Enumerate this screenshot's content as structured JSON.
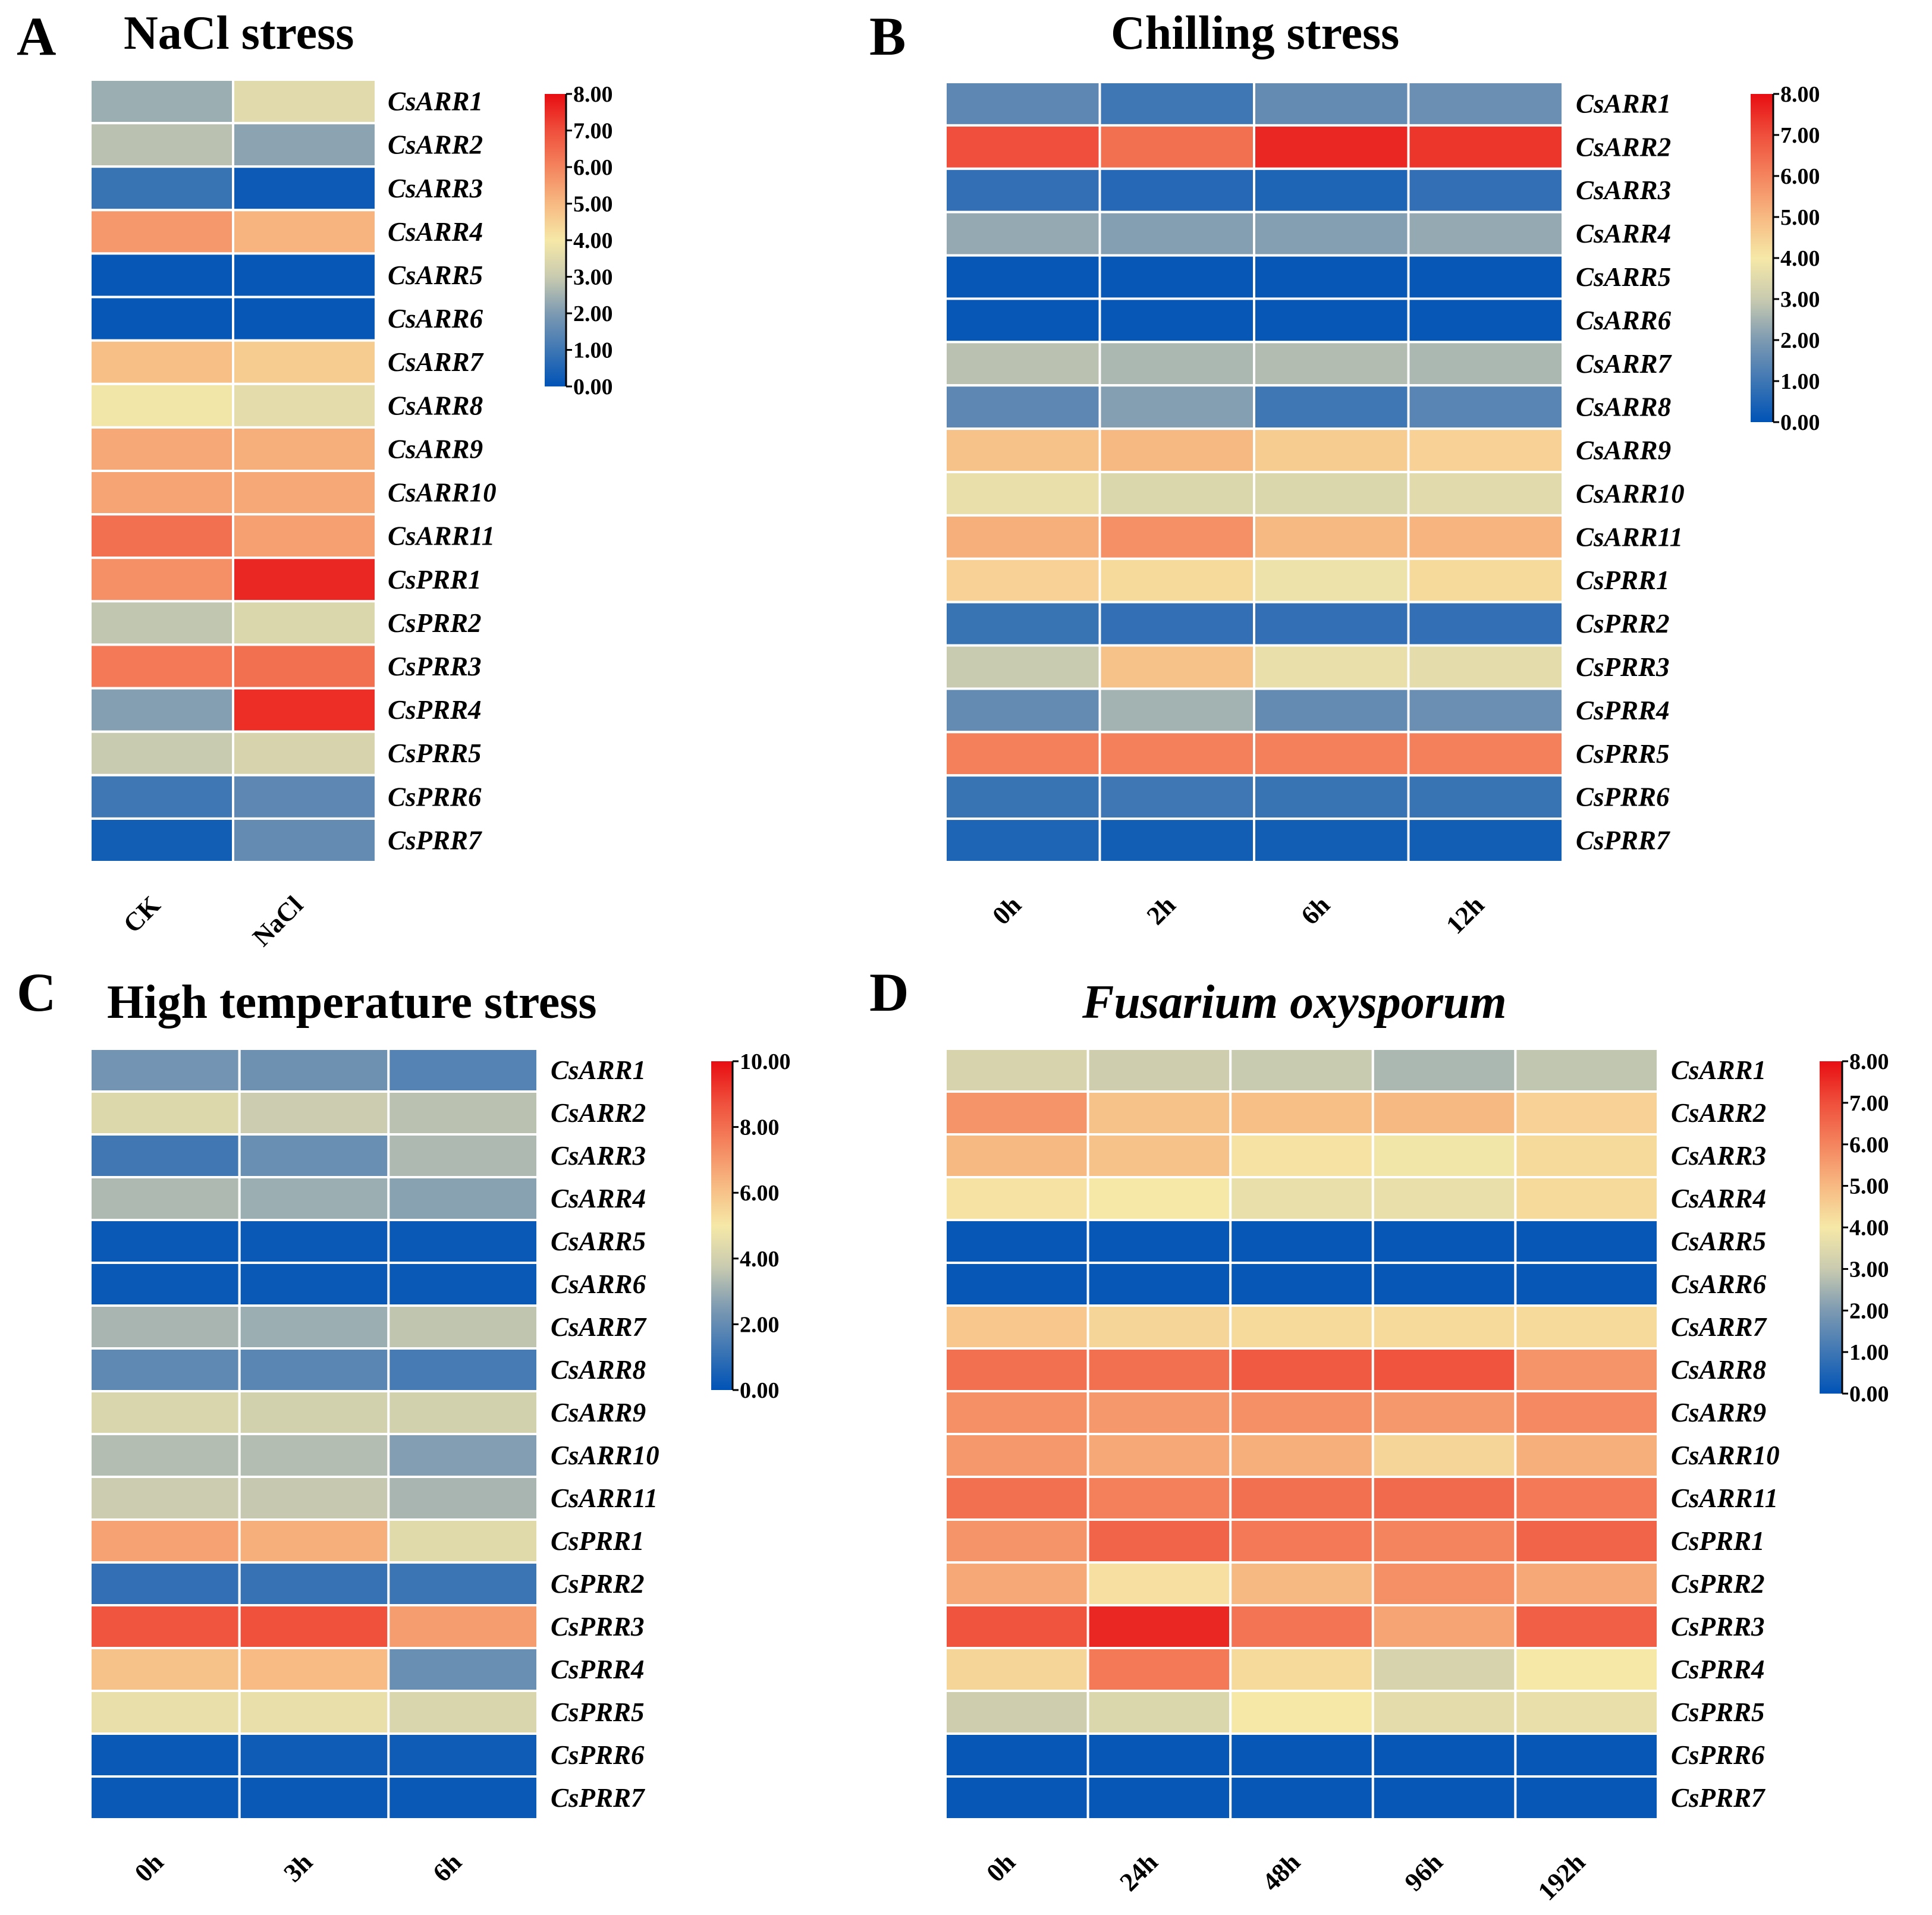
{
  "figure": {
    "description_free": true
  },
  "chart_data": [
    {
      "panel": "A",
      "title": "NaCl stress",
      "title_italic": false,
      "type": "heatmap",
      "columns": [
        "CK",
        "NaCl"
      ],
      "rows": [
        "CsARR1",
        "CsARR2",
        "CsARR3",
        "CsARR4",
        "CsARR5",
        "CsARR6",
        "CsARR7",
        "CsARR8",
        "CsARR9",
        "CsARR10",
        "CsARR11",
        "CsPRR1",
        "CsPRR2",
        "CsPRR3",
        "CsPRR4",
        "CsPRR5",
        "CsPRR6",
        "CsPRR7"
      ],
      "values": [
        [
          2.4,
          3.5
        ],
        [
          2.8,
          2.2
        ],
        [
          0.9,
          0.2
        ],
        [
          5.6,
          5.1
        ],
        [
          0.1,
          0.1
        ],
        [
          0.1,
          0.1
        ],
        [
          4.9,
          4.6
        ],
        [
          3.9,
          3.6
        ],
        [
          5.3,
          5.2
        ],
        [
          5.4,
          5.3
        ],
        [
          6.4,
          5.5
        ],
        [
          5.8,
          7.6
        ],
        [
          2.9,
          3.4
        ],
        [
          6.2,
          6.4
        ],
        [
          2.1,
          7.5
        ],
        [
          3.0,
          3.3
        ],
        [
          1.0,
          1.5
        ],
        [
          0.3,
          1.6
        ]
      ],
      "colorbar": {
        "min": 0,
        "max": 8,
        "ticks": [
          "0.00",
          "1.00",
          "2.00",
          "3.00",
          "4.00",
          "5.00",
          "6.00",
          "7.00",
          "8.00"
        ]
      }
    },
    {
      "panel": "B",
      "title": "Chilling stress",
      "title_italic": false,
      "type": "heatmap",
      "columns": [
        "0h",
        "2h",
        "6h",
        "12h"
      ],
      "rows": [
        "CsARR1",
        "CsARR2",
        "CsARR3",
        "CsARR4",
        "CsARR5",
        "CsARR6",
        "CsARR7",
        "CsARR8",
        "CsARR9",
        "CsARR10",
        "CsARR11",
        "CsPRR1",
        "CsPRR2",
        "CsPRR3",
        "CsPRR4",
        "CsPRR5",
        "CsPRR6",
        "CsPRR7"
      ],
      "values": [
        [
          1.5,
          1.0,
          1.6,
          1.7
        ],
        [
          7.0,
          6.4,
          7.6,
          7.4
        ],
        [
          0.8,
          0.6,
          0.5,
          0.8
        ],
        [
          2.3,
          2.1,
          2.1,
          2.3
        ],
        [
          0.1,
          0.1,
          0.1,
          0.1
        ],
        [
          0.1,
          0.1,
          0.1,
          0.1
        ],
        [
          2.8,
          2.6,
          2.7,
          2.6
        ],
        [
          1.5,
          2.1,
          1.0,
          1.4
        ],
        [
          4.8,
          5.0,
          4.6,
          4.5
        ],
        [
          3.7,
          3.4,
          3.4,
          3.5
        ],
        [
          5.2,
          5.8,
          5.0,
          5.1
        ],
        [
          4.5,
          4.3,
          3.8,
          4.3
        ],
        [
          0.9,
          0.8,
          0.8,
          0.8
        ],
        [
          3.0,
          4.8,
          3.7,
          3.6
        ],
        [
          1.6,
          2.5,
          1.6,
          1.7
        ],
        [
          6.1,
          6.1,
          6.1,
          6.1
        ],
        [
          0.9,
          1.0,
          0.9,
          0.9
        ],
        [
          0.5,
          0.3,
          0.3,
          0.3
        ]
      ],
      "colorbar": {
        "min": 0,
        "max": 8,
        "ticks": [
          "0.00",
          "1.00",
          "2.00",
          "3.00",
          "4.00",
          "5.00",
          "6.00",
          "7.00",
          "8.00"
        ]
      }
    },
    {
      "panel": "C",
      "title": "High temperature  stress",
      "title_italic": false,
      "type": "heatmap",
      "columns": [
        "0h",
        "3h",
        "6h"
      ],
      "rows": [
        "CsARR1",
        "CsARR2",
        "CsARR3",
        "CsARR4",
        "CsARR5",
        "CsARR6",
        "CsARR7",
        "CsARR8",
        "CsARR9",
        "CsARR10",
        "CsARR11",
        "CsPRR1",
        "CsPRR2",
        "CsPRR3",
        "CsPRR4",
        "CsPRR5",
        "CsPRR6",
        "CsPRR7"
      ],
      "values": [
        [
          2.3,
          2.2,
          1.7
        ],
        [
          4.3,
          3.8,
          3.5
        ],
        [
          1.3,
          2.1,
          3.3
        ],
        [
          3.3,
          3.0,
          2.7
        ],
        [
          0.2,
          0.2,
          0.2
        ],
        [
          0.2,
          0.2,
          0.2
        ],
        [
          3.2,
          3.0,
          3.6
        ],
        [
          1.9,
          1.8,
          1.4
        ],
        [
          4.2,
          4.0,
          4.0
        ],
        [
          3.4,
          3.4,
          2.6
        ],
        [
          3.8,
          3.7,
          3.2
        ],
        [
          6.8,
          6.5,
          4.4
        ],
        [
          1.0,
          1.1,
          1.2
        ],
        [
          8.6,
          8.7,
          6.9
        ],
        [
          6.0,
          6.2,
          2.1
        ],
        [
          4.6,
          4.6,
          4.2
        ],
        [
          0.2,
          0.3,
          0.3
        ],
        [
          0.2,
          0.2,
          0.2
        ]
      ],
      "colorbar": {
        "min": 0,
        "max": 10,
        "ticks": [
          "0.00",
          "2.00",
          "4.00",
          "6.00",
          "8.00",
          "10.00"
        ]
      }
    },
    {
      "panel": "D",
      "title": "Fusarium oxysporum",
      "title_italic": true,
      "type": "heatmap",
      "columns": [
        "0h",
        "24h",
        "48h",
        "96h",
        "192h"
      ],
      "rows": [
        "CsARR1",
        "CsARR2",
        "CsARR3",
        "CsARR4",
        "CsARR5",
        "CsARR6",
        "CsARR7",
        "CsARR8",
        "CsARR9",
        "CsARR10",
        "CsARR11",
        "CsPRR1",
        "CsPRR2",
        "CsPRR3",
        "CsPRR4",
        "CsPRR5",
        "CsPRR6",
        "CsPRR7"
      ],
      "values": [
        [
          3.3,
          3.1,
          3.0,
          2.6,
          2.9
        ],
        [
          5.7,
          4.8,
          4.9,
          5.0,
          4.5
        ],
        [
          5.0,
          4.8,
          4.1,
          3.9,
          4.3
        ],
        [
          4.1,
          4.0,
          3.7,
          3.7,
          4.3
        ],
        [
          0.1,
          0.1,
          0.1,
          0.1,
          0.1
        ],
        [
          0.1,
          0.1,
          0.1,
          0.1,
          0.1
        ],
        [
          4.7,
          4.4,
          4.3,
          4.3,
          4.3
        ],
        [
          6.4,
          6.4,
          6.8,
          6.9,
          5.7
        ],
        [
          5.8,
          5.6,
          5.8,
          5.6,
          5.9
        ],
        [
          5.6,
          5.3,
          5.2,
          4.4,
          5.2
        ],
        [
          6.4,
          6.1,
          6.4,
          6.5,
          6.2
        ],
        [
          5.7,
          6.6,
          6.2,
          6.0,
          6.6
        ],
        [
          5.3,
          4.2,
          5.0,
          5.8,
          5.3
        ],
        [
          6.9,
          7.6,
          6.3,
          5.4,
          6.7
        ],
        [
          4.4,
          6.2,
          4.3,
          3.3,
          4.0
        ],
        [
          3.1,
          3.4,
          4.0,
          3.6,
          3.7
        ],
        [
          0.1,
          0.1,
          0.1,
          0.1,
          0.1
        ],
        [
          0.1,
          0.1,
          0.1,
          0.1,
          0.1
        ]
      ],
      "colorbar": {
        "min": 0,
        "max": 8,
        "ticks": [
          "0.00",
          "1.00",
          "2.00",
          "3.00",
          "4.00",
          "5.00",
          "6.00",
          "7.00",
          "8.00"
        ]
      }
    }
  ]
}
